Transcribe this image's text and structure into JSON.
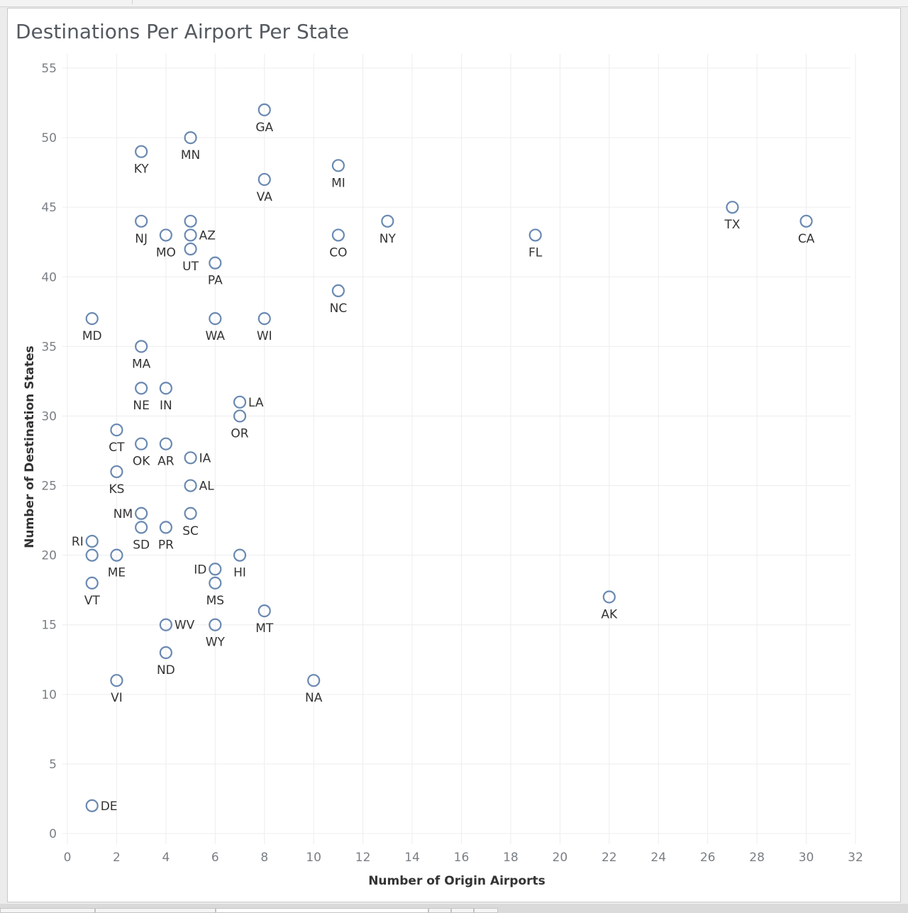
{
  "chart_data": {
    "type": "scatter",
    "title": "Destinations Per Airport Per State",
    "xlabel": "Number of Origin Airports",
    "ylabel": "Number of Destination States",
    "xlim": [
      0,
      32
    ],
    "ylim": [
      0,
      55
    ],
    "x_ticks": [
      0,
      2,
      4,
      6,
      8,
      10,
      12,
      14,
      16,
      18,
      20,
      22,
      24,
      26,
      28,
      30,
      32
    ],
    "y_ticks": [
      0,
      5,
      10,
      15,
      20,
      25,
      30,
      35,
      40,
      45,
      50,
      55
    ],
    "grid": true,
    "marker": "hollow-circle",
    "colors": {
      "marker": "#6a89b2",
      "grid": "#ededed",
      "title": "#555a60"
    },
    "points": [
      {
        "label": "GA",
        "x": 8,
        "y": 52,
        "pos": "below"
      },
      {
        "label": "MN",
        "x": 5,
        "y": 50,
        "pos": "below"
      },
      {
        "label": "KY",
        "x": 3,
        "y": 49,
        "pos": "below"
      },
      {
        "label": "MI",
        "x": 11,
        "y": 48,
        "pos": "below"
      },
      {
        "label": "VA",
        "x": 8,
        "y": 47,
        "pos": "below"
      },
      {
        "label": "TX",
        "x": 27,
        "y": 45,
        "pos": "below"
      },
      {
        "label": "NJ",
        "x": 3,
        "y": 44,
        "pos": "below"
      },
      {
        "label": "",
        "x": 5,
        "y": 44,
        "pos": "none"
      },
      {
        "label": "NY",
        "x": 13,
        "y": 44,
        "pos": "below"
      },
      {
        "label": "CA",
        "x": 30,
        "y": 44,
        "pos": "below"
      },
      {
        "label": "MO",
        "x": 4,
        "y": 43,
        "pos": "below"
      },
      {
        "label": "AZ",
        "x": 5,
        "y": 43,
        "pos": "right"
      },
      {
        "label": "CO",
        "x": 11,
        "y": 43,
        "pos": "below"
      },
      {
        "label": "FL",
        "x": 19,
        "y": 43,
        "pos": "below"
      },
      {
        "label": "UT",
        "x": 5,
        "y": 42,
        "pos": "below"
      },
      {
        "label": "PA",
        "x": 6,
        "y": 41,
        "pos": "below"
      },
      {
        "label": "NC",
        "x": 11,
        "y": 39,
        "pos": "below"
      },
      {
        "label": "MD",
        "x": 1,
        "y": 37,
        "pos": "below"
      },
      {
        "label": "WA",
        "x": 6,
        "y": 37,
        "pos": "below"
      },
      {
        "label": "WI",
        "x": 8,
        "y": 37,
        "pos": "below"
      },
      {
        "label": "MA",
        "x": 3,
        "y": 35,
        "pos": "below"
      },
      {
        "label": "NE",
        "x": 3,
        "y": 32,
        "pos": "below"
      },
      {
        "label": "IN",
        "x": 4,
        "y": 32,
        "pos": "below"
      },
      {
        "label": "LA",
        "x": 7,
        "y": 31,
        "pos": "right"
      },
      {
        "label": "CT",
        "x": 2,
        "y": 29,
        "pos": "below"
      },
      {
        "label": "OR",
        "x": 7,
        "y": 30,
        "pos": "below"
      },
      {
        "label": "OK",
        "x": 3,
        "y": 28,
        "pos": "below"
      },
      {
        "label": "AR",
        "x": 4,
        "y": 28,
        "pos": "below"
      },
      {
        "label": "IA",
        "x": 5,
        "y": 27,
        "pos": "right"
      },
      {
        "label": "KS",
        "x": 2,
        "y": 26,
        "pos": "below"
      },
      {
        "label": "AL",
        "x": 5,
        "y": 25,
        "pos": "right"
      },
      {
        "label": "NM",
        "x": 3,
        "y": 23,
        "pos": "left"
      },
      {
        "label": "SC",
        "x": 5,
        "y": 23,
        "pos": "below"
      },
      {
        "label": "SD",
        "x": 3,
        "y": 22,
        "pos": "below"
      },
      {
        "label": "PR",
        "x": 4,
        "y": 22,
        "pos": "below"
      },
      {
        "label": "RI",
        "x": 1,
        "y": 21,
        "pos": "left"
      },
      {
        "label": "",
        "x": 1,
        "y": 20,
        "pos": "none"
      },
      {
        "label": "ME",
        "x": 2,
        "y": 20,
        "pos": "below"
      },
      {
        "label": "HI",
        "x": 7,
        "y": 20,
        "pos": "below"
      },
      {
        "label": "ID",
        "x": 6,
        "y": 19,
        "pos": "left"
      },
      {
        "label": "VT",
        "x": 1,
        "y": 18,
        "pos": "below"
      },
      {
        "label": "MS",
        "x": 6,
        "y": 18,
        "pos": "below"
      },
      {
        "label": "AK",
        "x": 22,
        "y": 17,
        "pos": "below"
      },
      {
        "label": "MT",
        "x": 8,
        "y": 16,
        "pos": "below"
      },
      {
        "label": "WV",
        "x": 4,
        "y": 15,
        "pos": "right"
      },
      {
        "label": "WY",
        "x": 6,
        "y": 15,
        "pos": "below"
      },
      {
        "label": "ND",
        "x": 4,
        "y": 13,
        "pos": "below"
      },
      {
        "label": "VI",
        "x": 2,
        "y": 11,
        "pos": "below"
      },
      {
        "label": "NA",
        "x": 10,
        "y": 11,
        "pos": "below"
      },
      {
        "label": "DE",
        "x": 1,
        "y": 2,
        "pos": "right"
      }
    ]
  }
}
